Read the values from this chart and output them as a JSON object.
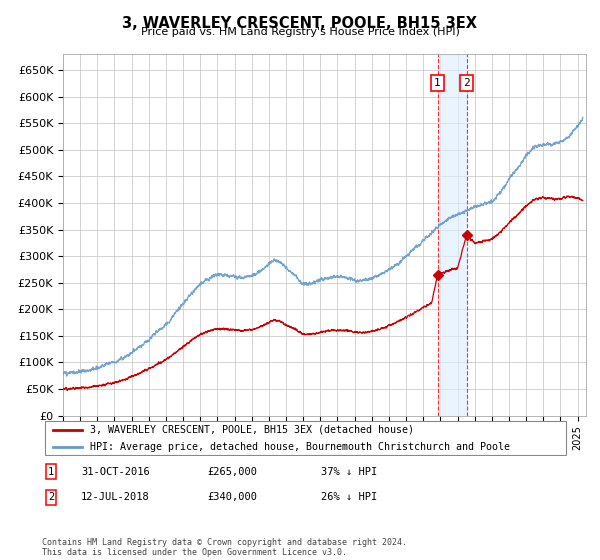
{
  "title": "3, WAVERLEY CRESCENT, POOLE, BH15 3EX",
  "subtitle": "Price paid vs. HM Land Registry's House Price Index (HPI)",
  "xlim_start": 1995.0,
  "xlim_end": 2025.5,
  "ylim_min": 0,
  "ylim_max": 680000,
  "yticks": [
    0,
    50000,
    100000,
    150000,
    200000,
    250000,
    300000,
    350000,
    400000,
    450000,
    500000,
    550000,
    600000,
    650000
  ],
  "ytick_labels": [
    "£0",
    "£50K",
    "£100K",
    "£150K",
    "£200K",
    "£250K",
    "£300K",
    "£350K",
    "£400K",
    "£450K",
    "£500K",
    "£550K",
    "£600K",
    "£650K"
  ],
  "hpi_color": "#6699cc",
  "price_color": "#cc0000",
  "sale1_x": 2016.833,
  "sale1_y": 265000,
  "sale2_x": 2018.53,
  "sale2_y": 340000,
  "vline1_x": 2016.833,
  "vline2_x": 2018.53,
  "legend1_label": "3, WAVERLEY CRESCENT, POOLE, BH15 3EX (detached house)",
  "legend2_label": "HPI: Average price, detached house, Bournemouth Christchurch and Poole",
  "note1_label": "1",
  "note1_date": "31-OCT-2016",
  "note1_price": "£265,000",
  "note1_hpi": "37% ↓ HPI",
  "note2_label": "2",
  "note2_date": "12-JUL-2018",
  "note2_price": "£340,000",
  "note2_hpi": "26% ↓ HPI",
  "footer": "Contains HM Land Registry data © Crown copyright and database right 2024.\nThis data is licensed under the Open Government Licence v3.0.",
  "background_color": "#ffffff",
  "plot_background": "#ffffff",
  "grid_color": "#cccccc"
}
